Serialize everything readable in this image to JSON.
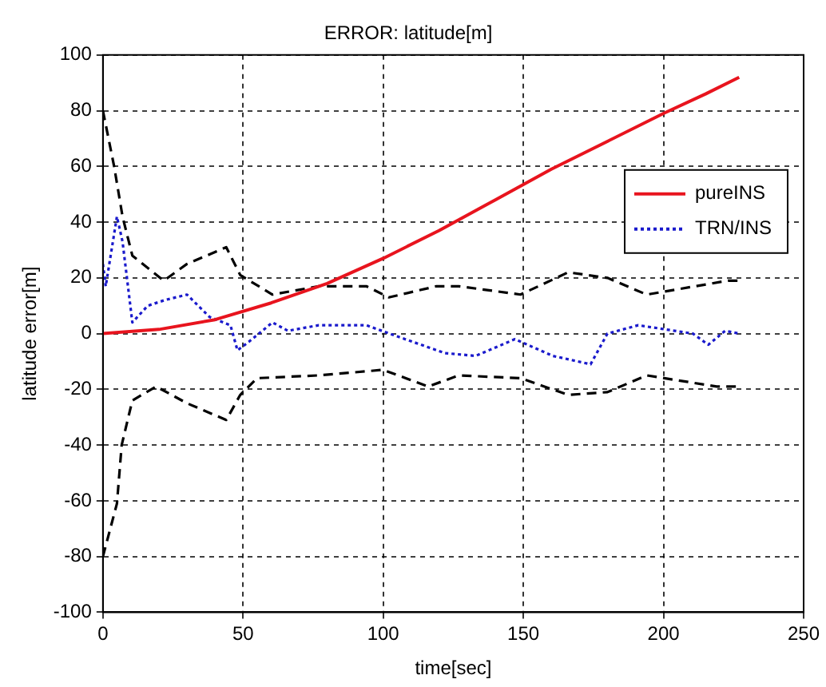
{
  "chart_data": {
    "type": "line",
    "title": "ERROR: latitude[m]",
    "xlabel": "time[sec]",
    "ylabel": "latitude error[m]",
    "xlim": [
      0,
      250
    ],
    "xticks": [
      0,
      50,
      100,
      150,
      200,
      250
    ],
    "ylim": [
      -100,
      100
    ],
    "yticks": [
      -100,
      -80,
      -60,
      -40,
      -20,
      0,
      20,
      40,
      60,
      80,
      100
    ],
    "grid": true,
    "legend": "top right",
    "marker": "none",
    "series": [
      {
        "name": "pureINS",
        "color": "#e8141e",
        "line_style": "solid",
        "x": [
          0,
          20,
          40,
          60,
          80,
          100,
          120,
          140,
          160,
          180,
          200,
          215,
          227
        ],
        "values": [
          0,
          1.5,
          5,
          11,
          18,
          27,
          37,
          48,
          59,
          69,
          79,
          86,
          92
        ]
      },
      {
        "name": "TRN/INS",
        "color": "#1a1acc",
        "line_style": "dotted",
        "x": [
          0,
          1,
          5,
          7,
          10.5,
          16,
          22,
          30,
          38,
          45.5,
          48,
          52,
          60.5,
          66,
          77,
          94,
          105,
          122,
          133,
          147,
          160.5,
          174,
          180,
          191,
          210.5,
          216,
          222,
          227
        ],
        "values": [
          25,
          17,
          42,
          33,
          4,
          10,
          12,
          14,
          6,
          3,
          -6,
          -3,
          4,
          1,
          3,
          3,
          -1,
          -7,
          -8,
          -2,
          -8,
          -11,
          0,
          3,
          0,
          -4,
          1,
          0
        ]
      },
      {
        "color": "#000000",
        "line_style": "dashed",
        "x": [
          0,
          4,
          7,
          10.5,
          21.7,
          30,
          44,
          49,
          60.5,
          77,
          94,
          102,
          119,
          127,
          149,
          166,
          180,
          194,
          223,
          227
        ],
        "values": [
          80,
          60,
          42,
          28,
          19,
          25,
          31,
          21,
          14,
          17,
          17,
          13,
          17,
          17,
          14,
          22,
          20,
          14,
          19,
          19
        ]
      },
      {
        "color": "#000000",
        "line_style": "dashed",
        "x": [
          0,
          5,
          6.7,
          10.5,
          19,
          30,
          44,
          49,
          55,
          77,
          100,
          116,
          127,
          149,
          166,
          180,
          194,
          219,
          227
        ],
        "values": [
          -80,
          -61,
          -40,
          -24,
          -19,
          -25,
          -31,
          -22,
          -16,
          -15,
          -13,
          -19,
          -15,
          -16,
          -22,
          -21,
          -15,
          -19,
          -19
        ]
      }
    ]
  }
}
